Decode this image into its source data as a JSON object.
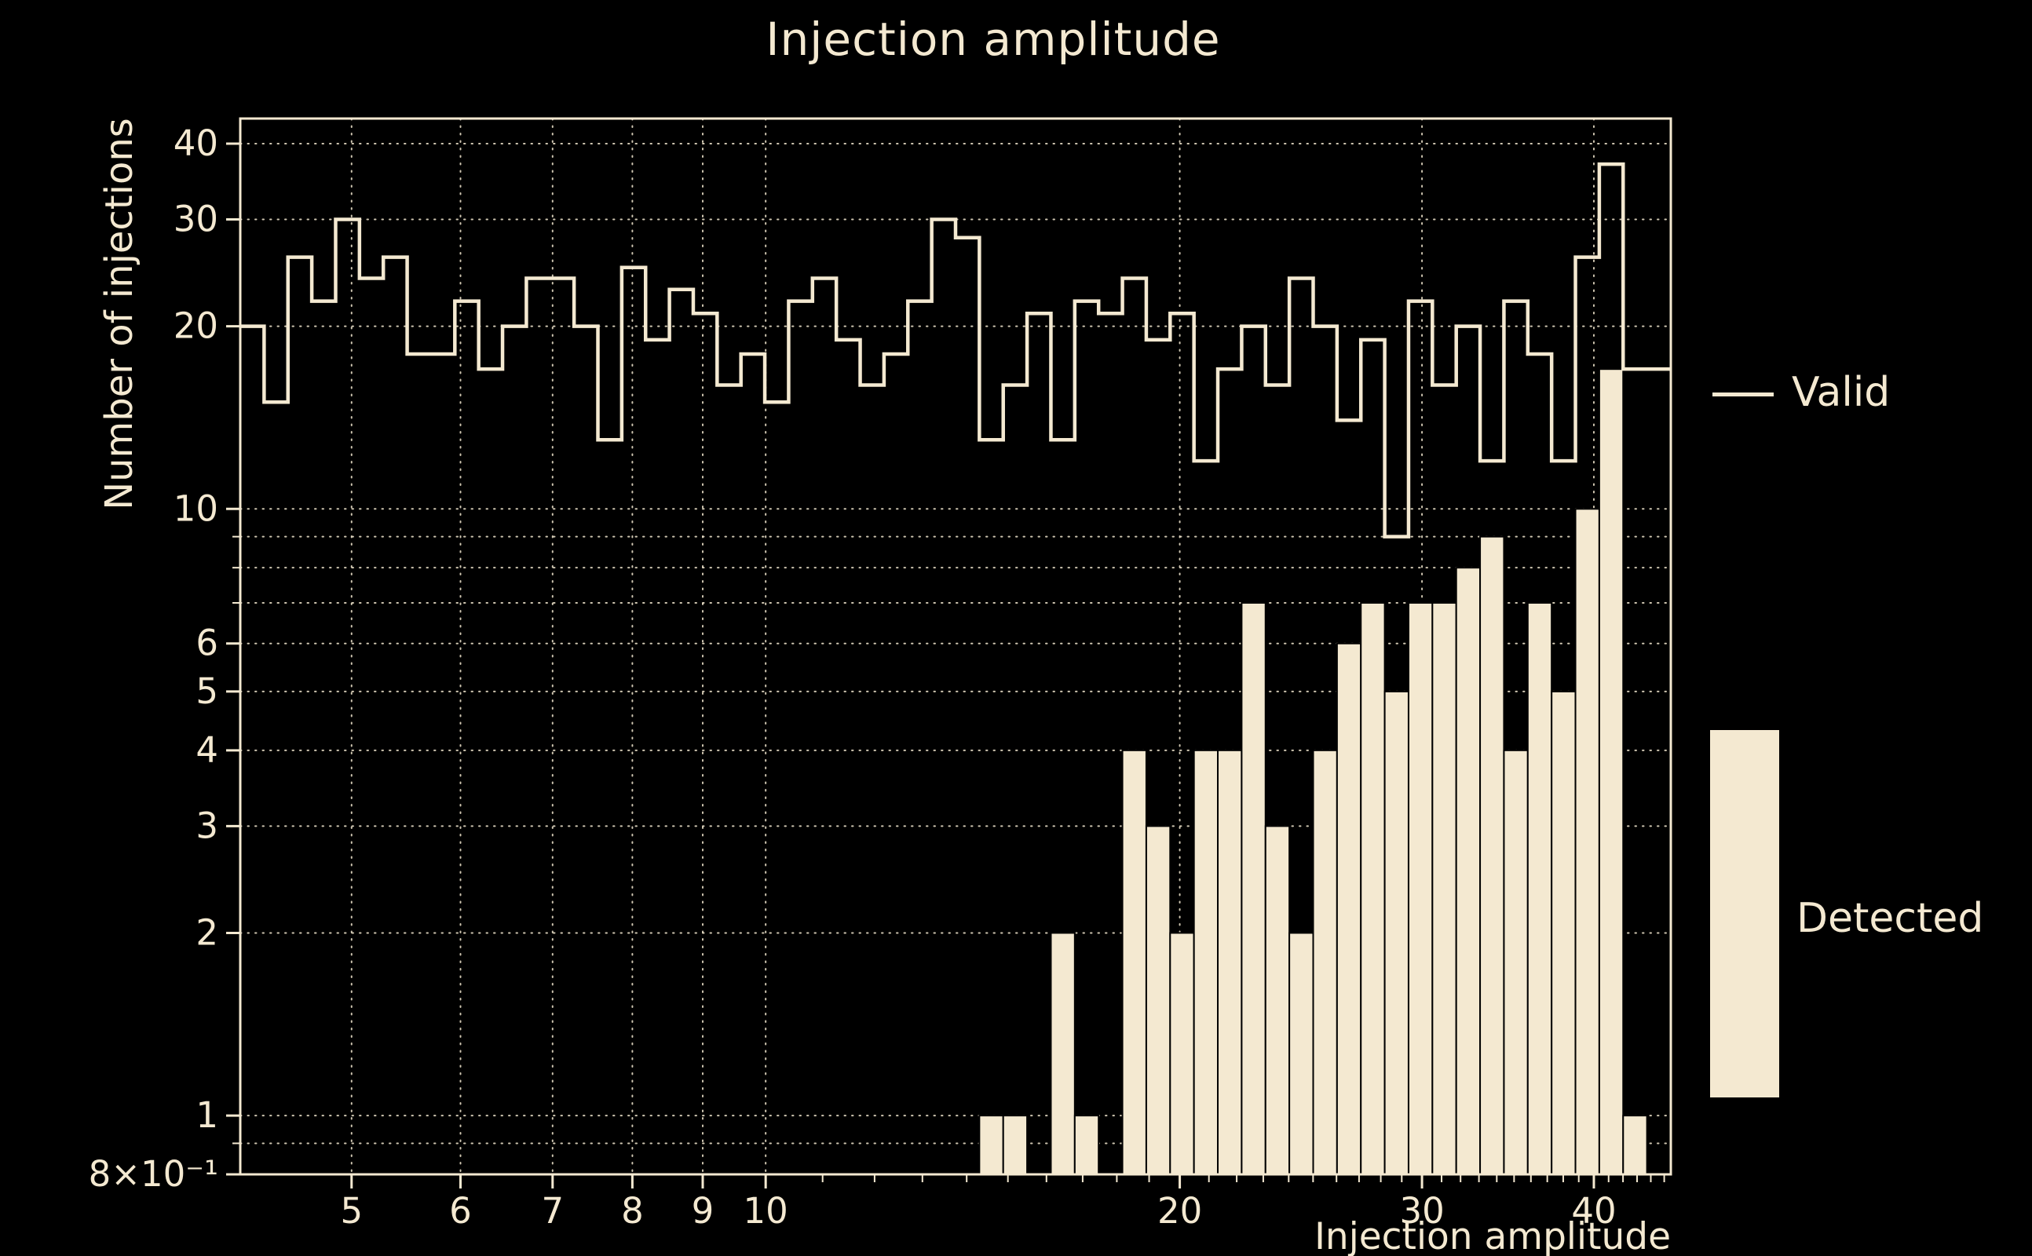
{
  "chart_data": {
    "type": "bar",
    "subtype": "log-log histogram: step-outline series plus filled-bar series",
    "title": "Injection amplitude",
    "xlabel": "Injection amplitude",
    "ylabel": "Number of injections",
    "x_scale": "log",
    "y_scale": "log",
    "x_range": [
      4.15,
      45.5
    ],
    "y_range": [
      0.8,
      44
    ],
    "n_bins": 60,
    "series": [
      {
        "name": "Valid",
        "style": "step-line",
        "values": [
          20,
          15,
          26,
          22,
          30,
          24,
          26,
          18,
          18,
          22,
          17,
          20,
          24,
          24,
          20,
          13,
          25,
          19,
          23,
          21,
          16,
          18,
          15,
          22,
          24,
          19,
          16,
          18,
          22,
          30,
          28,
          13,
          16,
          21,
          13,
          22,
          21,
          24,
          19,
          21,
          12,
          17,
          20,
          16,
          24,
          20,
          14,
          19,
          9,
          22,
          16,
          20,
          12,
          22,
          18,
          12,
          26,
          37,
          17,
          17
        ]
      },
      {
        "name": "Detected",
        "style": "filled-bar",
        "values": [
          0,
          0,
          0,
          0,
          0,
          0,
          0,
          0,
          0,
          0,
          0,
          0,
          0,
          0,
          0,
          0,
          0,
          0,
          0,
          0,
          0,
          0,
          0,
          0,
          0,
          0,
          0,
          0,
          0,
          0,
          0,
          1,
          1,
          0,
          2,
          1,
          0,
          4,
          3,
          2,
          4,
          4,
          7,
          3,
          2,
          4,
          6,
          7,
          5,
          7,
          7,
          8,
          9,
          4,
          7,
          5,
          10,
          17,
          1,
          0
        ]
      }
    ],
    "x_ticks": [
      {
        "v": 5,
        "label": "5"
      },
      {
        "v": 6,
        "label": "6"
      },
      {
        "v": 7,
        "label": "7"
      },
      {
        "v": 8,
        "label": "8"
      },
      {
        "v": 9,
        "label": "9"
      },
      {
        "v": 10,
        "label": "10"
      },
      {
        "v": 20,
        "label": "20"
      },
      {
        "v": 30,
        "label": "30"
      },
      {
        "v": 40,
        "label": "40"
      }
    ],
    "y_ticks": [
      {
        "v": 40,
        "label": "40"
      },
      {
        "v": 30,
        "label": "30"
      },
      {
        "v": 20,
        "label": "20"
      },
      {
        "v": 10,
        "label": "10"
      },
      {
        "v": 6,
        "label": "6"
      },
      {
        "v": 5,
        "label": "5"
      },
      {
        "v": 4,
        "label": "4"
      },
      {
        "v": 3,
        "label": "3"
      },
      {
        "v": 2,
        "label": "2"
      },
      {
        "v": 1,
        "label": "1"
      },
      {
        "v": 0.8,
        "label": "8×10⁻¹"
      }
    ],
    "x_minor_ticks": [
      11,
      12,
      13,
      14,
      15,
      16,
      17,
      18,
      19,
      21,
      22,
      23,
      24,
      25,
      26,
      27,
      28,
      29,
      31,
      32,
      33,
      34,
      35,
      36,
      37,
      38,
      39,
      41,
      42,
      43,
      44,
      45
    ],
    "y_minor_ticks": [
      0.9,
      7,
      8,
      9
    ],
    "x_gridlines": [
      5,
      6,
      7,
      8,
      9,
      10,
      20,
      30,
      40
    ],
    "y_gridlines": [
      0.9,
      1,
      2,
      3,
      4,
      5,
      6,
      7,
      8,
      9,
      10,
      20,
      30,
      40
    ],
    "grid": "dotted",
    "legend_position": "right",
    "colors": {
      "foreground": "#f4e9d1",
      "background": "#000000"
    }
  }
}
